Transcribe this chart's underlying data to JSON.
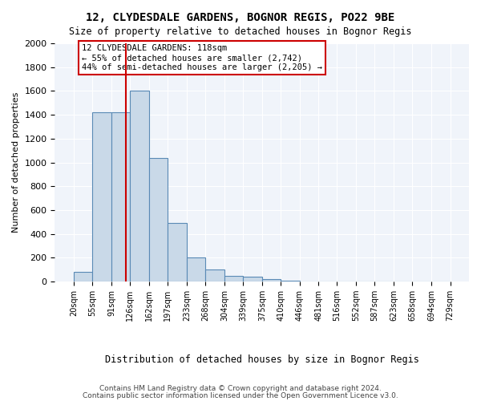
{
  "title": "12, CLYDESDALE GARDENS, BOGNOR REGIS, PO22 9BE",
  "subtitle": "Size of property relative to detached houses in Bognor Regis",
  "xlabel": "Distribution of detached houses by size in Bognor Regis",
  "ylabel": "Number of detached properties",
  "footer_line1": "Contains HM Land Registry data © Crown copyright and database right 2024.",
  "footer_line2": "Contains public sector information licensed under the Open Government Licence v3.0.",
  "annotation_line1": "12 CLYDESDALE GARDENS: 118sqm",
  "annotation_line2": "← 55% of detached houses are smaller (2,742)",
  "annotation_line3": "44% of semi-detached houses are larger (2,205) →",
  "property_size": 118,
  "bar_edges": [
    20,
    55,
    91,
    126,
    162,
    197,
    233,
    268,
    304,
    339,
    375,
    410,
    446,
    481,
    516,
    552,
    587,
    623,
    658,
    694,
    729
  ],
  "bar_heights": [
    80,
    1420,
    1420,
    1600,
    1040,
    490,
    200,
    105,
    45,
    40,
    20,
    10,
    0,
    0,
    0,
    0,
    0,
    0,
    0,
    0
  ],
  "bar_color": "#c9d9e8",
  "bar_edge_color": "#5a8ab5",
  "vline_color": "#cc0000",
  "annotation_box_color": "#cc0000",
  "background_color": "#f0f4fa",
  "grid_color": "#ffffff",
  "ylim": [
    0,
    2000
  ],
  "yticks": [
    0,
    200,
    400,
    600,
    800,
    1000,
    1200,
    1400,
    1600,
    1800,
    2000
  ]
}
